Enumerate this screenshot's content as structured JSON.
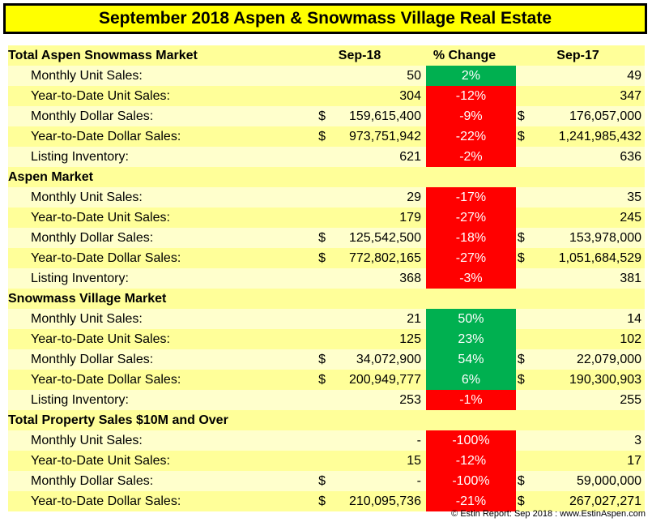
{
  "title": "September 2018 Aspen & Snowmass Village Real Estate",
  "footer": "© Estin Report: Sep 2018 : www.EstinAspen.com",
  "colors": {
    "increase": "#00b050",
    "decrease": "#ff0000",
    "header": "#ffff00",
    "row_light": "#ffffcc",
    "row_dark": "#ffff99"
  },
  "chart_data": {
    "type": "table",
    "columns": [
      "Sep-18",
      "% Change",
      "Sep-17"
    ],
    "sections": [
      {
        "name": "Total Aspen Snowmass Market",
        "rows": [
          {
            "label": "Monthly Unit Sales:",
            "sep18_dollar": "",
            "sep18": "50",
            "pct": "2%",
            "trend": "up",
            "sep17_dollar": "",
            "sep17": "49"
          },
          {
            "label": "Year-to-Date Unit Sales:",
            "sep18_dollar": "",
            "sep18": "304",
            "pct": "-12%",
            "trend": "down",
            "sep17_dollar": "",
            "sep17": "347"
          },
          {
            "label": "Monthly Dollar Sales:",
            "sep18_dollar": "$",
            "sep18": "159,615,400",
            "pct": "-9%",
            "trend": "down",
            "sep17_dollar": "$",
            "sep17": "176,057,000"
          },
          {
            "label": "Year-to-Date Dollar Sales:",
            "sep18_dollar": "$",
            "sep18": "973,751,942",
            "pct": "-22%",
            "trend": "down",
            "sep17_dollar": "$",
            "sep17": "1,241,985,432"
          },
          {
            "label": "Listing Inventory:",
            "sep18_dollar": "",
            "sep18": "621",
            "pct": "-2%",
            "trend": "down",
            "sep17_dollar": "",
            "sep17": "636"
          }
        ]
      },
      {
        "name": "Aspen Market",
        "rows": [
          {
            "label": "Monthly Unit Sales:",
            "sep18_dollar": "",
            "sep18": "29",
            "pct": "-17%",
            "trend": "down",
            "sep17_dollar": "",
            "sep17": "35"
          },
          {
            "label": "Year-to-Date Unit Sales:",
            "sep18_dollar": "",
            "sep18": "179",
            "pct": "-27%",
            "trend": "down",
            "sep17_dollar": "",
            "sep17": "245"
          },
          {
            "label": "Monthly Dollar Sales:",
            "sep18_dollar": "$",
            "sep18": "125,542,500",
            "pct": "-18%",
            "trend": "down",
            "sep17_dollar": "$",
            "sep17": "153,978,000"
          },
          {
            "label": "Year-to-Date Dollar Sales:",
            "sep18_dollar": "$",
            "sep18": "772,802,165",
            "pct": "-27%",
            "trend": "down",
            "sep17_dollar": "$",
            "sep17": "1,051,684,529"
          },
          {
            "label": "Listing Inventory:",
            "sep18_dollar": "",
            "sep18": "368",
            "pct": "-3%",
            "trend": "down",
            "sep17_dollar": "",
            "sep17": "381"
          }
        ]
      },
      {
        "name": "Snowmass Village Market",
        "rows": [
          {
            "label": "Monthly Unit Sales:",
            "sep18_dollar": "",
            "sep18": "21",
            "pct": "50%",
            "trend": "up",
            "sep17_dollar": "",
            "sep17": "14"
          },
          {
            "label": "Year-to-Date Unit Sales:",
            "sep18_dollar": "",
            "sep18": "125",
            "pct": "23%",
            "trend": "up",
            "sep17_dollar": "",
            "sep17": "102"
          },
          {
            "label": "Monthly Dollar Sales:",
            "sep18_dollar": "$",
            "sep18": "34,072,900",
            "pct": "54%",
            "trend": "up",
            "sep17_dollar": "$",
            "sep17": "22,079,000"
          },
          {
            "label": "Year-to-Date Dollar Sales:",
            "sep18_dollar": "$",
            "sep18": "200,949,777",
            "pct": "6%",
            "trend": "up",
            "sep17_dollar": "$",
            "sep17": "190,300,903"
          },
          {
            "label": "Listing Inventory:",
            "sep18_dollar": "",
            "sep18": "253",
            "pct": "-1%",
            "trend": "down",
            "sep17_dollar": "",
            "sep17": "255"
          }
        ]
      },
      {
        "name": "Total Property Sales $10M and Over",
        "rows": [
          {
            "label": "Monthly Unit Sales:",
            "sep18_dollar": "",
            "sep18": "-",
            "pct": "-100%",
            "trend": "down",
            "sep17_dollar": "",
            "sep17": "3"
          },
          {
            "label": "Year-to-Date Unit Sales:",
            "sep18_dollar": "",
            "sep18": "15",
            "pct": "-12%",
            "trend": "down",
            "sep17_dollar": "",
            "sep17": "17"
          },
          {
            "label": "Monthly Dollar Sales:",
            "sep18_dollar": "$",
            "sep18": "-",
            "pct": "-100%",
            "trend": "down",
            "sep17_dollar": "$",
            "sep17": "59,000,000"
          },
          {
            "label": "Year-to-Date Dollar Sales:",
            "sep18_dollar": "$",
            "sep18": "210,095,736",
            "pct": "-21%",
            "trend": "down",
            "sep17_dollar": "$",
            "sep17": "267,027,271"
          }
        ]
      }
    ]
  }
}
